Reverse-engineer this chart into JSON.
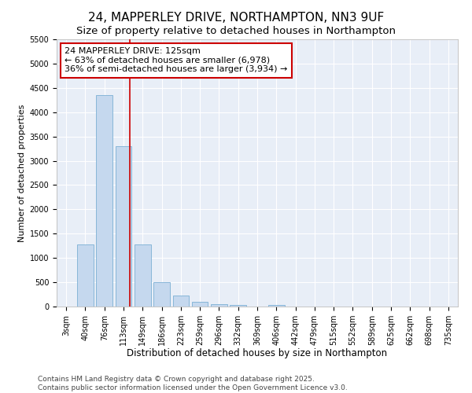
{
  "title": "24, MAPPERLEY DRIVE, NORTHAMPTON, NN3 9UF",
  "subtitle": "Size of property relative to detached houses in Northampton",
  "xlabel": "Distribution of detached houses by size in Northampton",
  "ylabel": "Number of detached properties",
  "categories": [
    "3sqm",
    "40sqm",
    "76sqm",
    "113sqm",
    "149sqm",
    "186sqm",
    "223sqm",
    "259sqm",
    "296sqm",
    "332sqm",
    "369sqm",
    "406sqm",
    "442sqm",
    "479sqm",
    "515sqm",
    "552sqm",
    "589sqm",
    "625sqm",
    "662sqm",
    "698sqm",
    "735sqm"
  ],
  "values": [
    0,
    1270,
    4350,
    3300,
    1280,
    500,
    230,
    100,
    50,
    30,
    0,
    30,
    0,
    0,
    0,
    0,
    0,
    0,
    0,
    0,
    0
  ],
  "bar_color": "#c5d8ee",
  "bar_edge_color": "#7bafd4",
  "vline_color": "#cc0000",
  "annotation_text": "24 MAPPERLEY DRIVE: 125sqm\n← 63% of detached houses are smaller (6,978)\n36% of semi-detached houses are larger (3,934) →",
  "annotation_box_facecolor": "#ffffff",
  "annotation_box_edgecolor": "#cc0000",
  "ylim": [
    0,
    5500
  ],
  "yticks": [
    0,
    500,
    1000,
    1500,
    2000,
    2500,
    3000,
    3500,
    4000,
    4500,
    5000,
    5500
  ],
  "plot_bg_color": "#e8eef7",
  "grid_color": "#ffffff",
  "footer": "Contains HM Land Registry data © Crown copyright and database right 2025.\nContains public sector information licensed under the Open Government Licence v3.0.",
  "title_fontsize": 11,
  "subtitle_fontsize": 9.5,
  "xlabel_fontsize": 8.5,
  "ylabel_fontsize": 8,
  "tick_fontsize": 7,
  "annotation_fontsize": 8,
  "footer_fontsize": 6.5
}
